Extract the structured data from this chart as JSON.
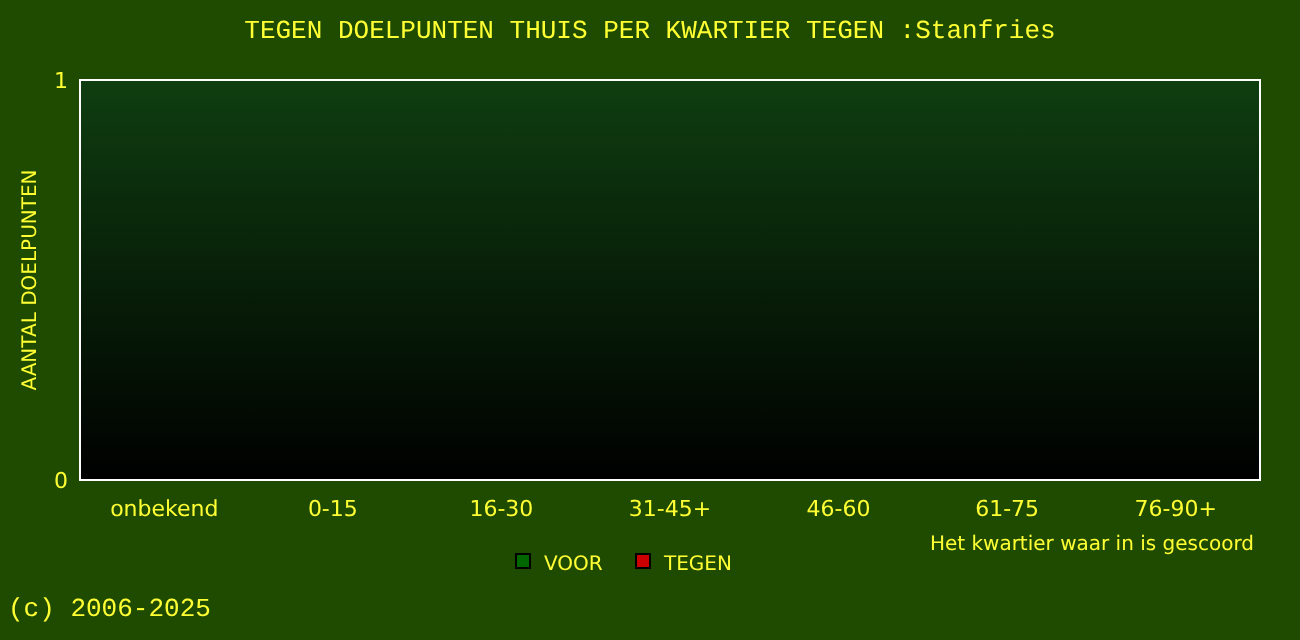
{
  "chart_data": {
    "type": "bar",
    "title": "TEGEN DOELPUNTEN THUIS PER KWARTIER TEGEN :Stanfries",
    "xlabel": "Het kwartier waar in is gescoord",
    "ylabel": "AANTAL DOELPUNTEN",
    "categories": [
      "onbekend",
      "0-15",
      "16-30",
      "31-45+",
      "46-60",
      "61-75",
      "76-90+"
    ],
    "series": [
      {
        "name": "VOOR",
        "color": "#006600",
        "values": [
          0,
          0,
          0,
          0,
          0,
          0,
          0
        ]
      },
      {
        "name": "TEGEN",
        "color": "#cc0000",
        "values": [
          0,
          0,
          0,
          0,
          0,
          0,
          0
        ]
      }
    ],
    "ylim": [
      0,
      1
    ],
    "yticks": [
      0,
      1
    ],
    "grid": false,
    "legend": "bottom",
    "annotations": [
      "(c) 2006-2025"
    ]
  }
}
